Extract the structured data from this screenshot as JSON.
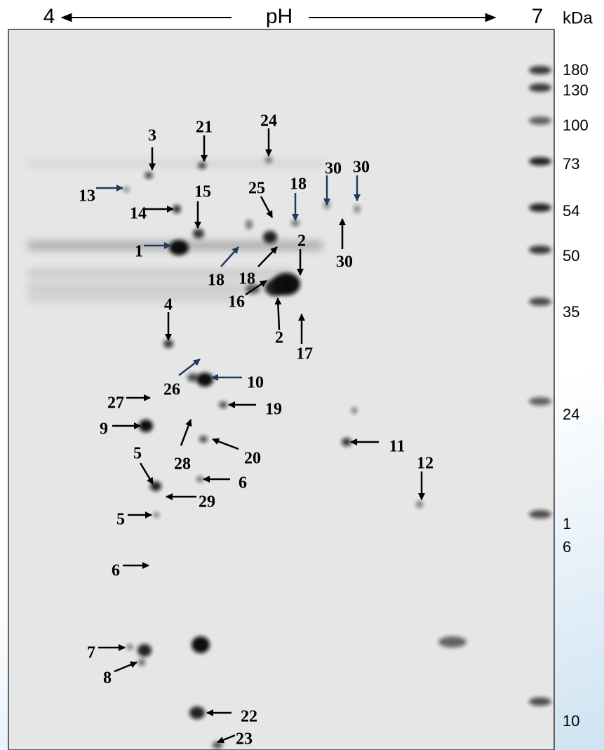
{
  "header": {
    "left": "4",
    "title": "pH",
    "right": "7",
    "unit": "kDa"
  },
  "markers": [
    "180",
    "130",
    "100",
    "73",
    "54",
    "50",
    "35",
    "24",
    "1",
    "6",
    "10"
  ],
  "labels": [
    "3",
    "21",
    "24",
    "30",
    "30",
    "18",
    "25",
    "13",
    "15",
    "14",
    "30",
    "1",
    "2",
    "18",
    "18",
    "16",
    "2",
    "17",
    "4",
    "26",
    "10",
    "27",
    "19",
    "9",
    "28",
    "20",
    "11",
    "12",
    "5",
    "6",
    "29",
    "5",
    "6",
    "7",
    "8",
    "22",
    "23"
  ]
}
